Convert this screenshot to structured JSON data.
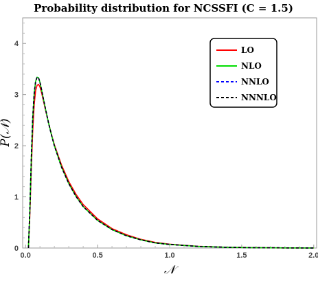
{
  "chart_data": {
    "type": "line",
    "title": "Probability distribution for NCSSFI (C = 1.5)",
    "xlabel": "𝒩",
    "ylabel": "P(𝒩)",
    "xlim": [
      0,
      2.0
    ],
    "ylim": [
      0,
      4.5
    ],
    "x_ticks": [
      0.0,
      0.5,
      1.0,
      1.5,
      2.0
    ],
    "x_tick_labels": [
      "0.0",
      "0.5",
      "1.0",
      "1.5",
      "2.0"
    ],
    "y_ticks": [
      0,
      1,
      2,
      3,
      4
    ],
    "y_tick_labels": [
      "0",
      "1",
      "2",
      "3",
      "4"
    ],
    "grid": false,
    "legend_position": "top-right",
    "x": [
      0.02,
      0.03,
      0.04,
      0.05,
      0.06,
      0.07,
      0.08,
      0.09,
      0.1,
      0.11,
      0.12,
      0.14,
      0.16,
      0.18,
      0.2,
      0.25,
      0.3,
      0.35,
      0.4,
      0.5,
      0.6,
      0.7,
      0.8,
      0.9,
      1.0,
      1.2,
      1.4,
      1.6,
      1.8,
      2.0
    ],
    "series": [
      {
        "name": "LO",
        "color": "#ff0000",
        "dash": "solid",
        "values": [
          0.0,
          0.65,
          1.55,
          2.3,
          2.8,
          3.08,
          3.18,
          3.2,
          3.15,
          3.05,
          2.93,
          2.68,
          2.44,
          2.22,
          2.02,
          1.62,
          1.3,
          1.05,
          0.85,
          0.57,
          0.38,
          0.26,
          0.17,
          0.11,
          0.075,
          0.033,
          0.015,
          0.007,
          0.003,
          0.001
        ]
      },
      {
        "name": "NLO",
        "color": "#00dd00",
        "dash": "solid",
        "values": [
          0.0,
          0.75,
          1.75,
          2.55,
          3.02,
          3.26,
          3.34,
          3.33,
          3.24,
          3.11,
          2.97,
          2.7,
          2.44,
          2.21,
          2.0,
          1.58,
          1.26,
          1.01,
          0.81,
          0.54,
          0.36,
          0.24,
          0.16,
          0.1,
          0.07,
          0.031,
          0.014,
          0.006,
          0.003,
          0.001
        ]
      },
      {
        "name": "NNLO",
        "color": "#0000ff",
        "dash": "dashed",
        "values": [
          0.0,
          0.75,
          1.75,
          2.55,
          3.02,
          3.26,
          3.34,
          3.33,
          3.24,
          3.11,
          2.97,
          2.7,
          2.44,
          2.21,
          2.0,
          1.58,
          1.26,
          1.01,
          0.81,
          0.54,
          0.36,
          0.24,
          0.16,
          0.1,
          0.07,
          0.031,
          0.014,
          0.006,
          0.003,
          0.001
        ]
      },
      {
        "name": "NNNLO",
        "color": "#000000",
        "dash": "dashed",
        "values": [
          0.0,
          0.75,
          1.75,
          2.55,
          3.02,
          3.26,
          3.34,
          3.33,
          3.24,
          3.11,
          2.97,
          2.7,
          2.44,
          2.21,
          2.0,
          1.58,
          1.26,
          1.01,
          0.81,
          0.54,
          0.36,
          0.24,
          0.16,
          0.1,
          0.07,
          0.031,
          0.014,
          0.006,
          0.003,
          0.001
        ]
      }
    ]
  }
}
